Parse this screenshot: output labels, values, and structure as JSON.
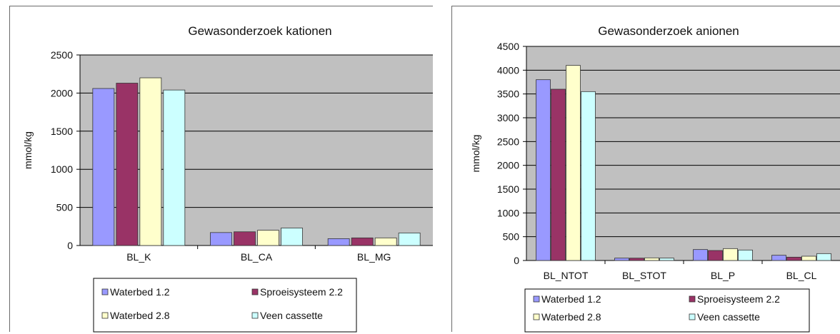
{
  "colors": {
    "plot_bg": "#c0c0c0",
    "grid": "#000000",
    "series": [
      "#9999ff",
      "#993366",
      "#ffffcc",
      "#ccffff"
    ]
  },
  "chart_data": [
    {
      "type": "bar",
      "title": "Gewasonderzoek kationen",
      "ylabel": "mmol/kg",
      "xlabel": "",
      "ylim": [
        0,
        2500
      ],
      "yticks": [
        "0",
        "500",
        "1000",
        "1500",
        "2000",
        "2500"
      ],
      "categories": [
        "BL_K",
        "BL_CA",
        "BL_MG"
      ],
      "grid": true,
      "legend_position": "bottom",
      "series": [
        {
          "name": "Waterbed 1.2",
          "values": [
            2060,
            170,
            90
          ]
        },
        {
          "name": "Sproeisysteem 2.2",
          "values": [
            2130,
            180,
            100
          ]
        },
        {
          "name": "Waterbed 2.8",
          "values": [
            2200,
            200,
            100
          ]
        },
        {
          "name": "Veen cassette",
          "values": [
            2040,
            230,
            165
          ]
        }
      ]
    },
    {
      "type": "bar",
      "title": "Gewasonderzoek anionen",
      "ylabel": "mmol/kg",
      "xlabel": "",
      "ylim": [
        0,
        4500
      ],
      "yticks": [
        "0",
        "500",
        "1000",
        "1500",
        "2000",
        "2500",
        "3000",
        "3500",
        "4000",
        "4500"
      ],
      "categories": [
        "BL_NTOT",
        "BL_STOT",
        "BL_P",
        "BL_CL"
      ],
      "grid": true,
      "legend_position": "bottom",
      "series": [
        {
          "name": "Waterbed 1.2",
          "values": [
            3800,
            50,
            230,
            110
          ]
        },
        {
          "name": "Sproeisysteem 2.2",
          "values": [
            3600,
            50,
            210,
            70
          ]
        },
        {
          "name": "Waterbed 2.8",
          "values": [
            4100,
            55,
            250,
            90
          ]
        },
        {
          "name": "Veen cassette",
          "values": [
            3550,
            50,
            220,
            145
          ]
        }
      ]
    }
  ]
}
